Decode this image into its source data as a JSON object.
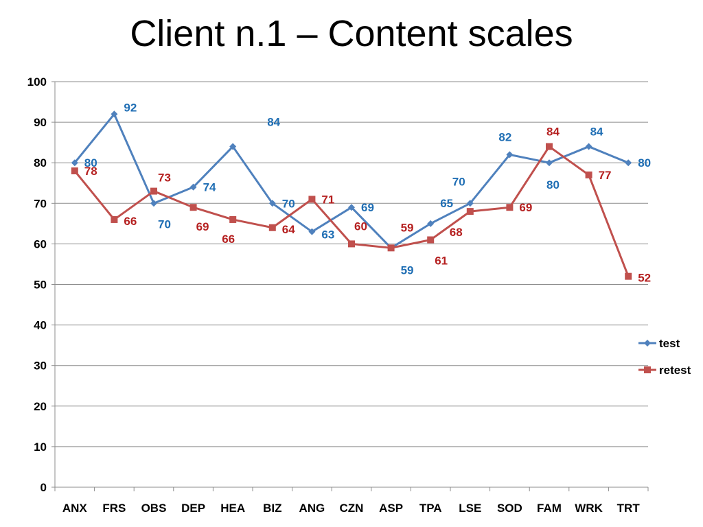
{
  "slide": {
    "title": "Client n.1 – Content scales"
  },
  "chart_data": {
    "type": "line",
    "title": "",
    "xlabel": "",
    "ylabel": "",
    "categories": [
      "ANX",
      "FRS",
      "OBS",
      "DEP",
      "HEA",
      "BIZ",
      "ANG",
      "CZN",
      "ASP",
      "TPA",
      "LSE",
      "SOD",
      "FAM",
      "WRK",
      "TRT"
    ],
    "ylim": [
      0,
      100
    ],
    "yticks": [
      0,
      10,
      20,
      30,
      40,
      50,
      60,
      70,
      80,
      90,
      100
    ],
    "grid": "horizontal",
    "legend_position": "right",
    "series": [
      {
        "name": "test",
        "color": "#4F81BD",
        "label_color": "#1F6EB4",
        "marker": "diamond",
        "values": [
          80,
          92,
          70,
          74,
          84,
          70,
          63,
          69,
          59,
          65,
          70,
          82,
          80,
          84,
          80
        ]
      },
      {
        "name": "retest",
        "color": "#C0504D",
        "label_color": "#B51F1F",
        "marker": "square",
        "values": [
          78,
          66,
          73,
          69,
          66,
          64,
          71,
          60,
          59,
          61,
          68,
          69,
          84,
          77,
          52
        ]
      }
    ]
  }
}
